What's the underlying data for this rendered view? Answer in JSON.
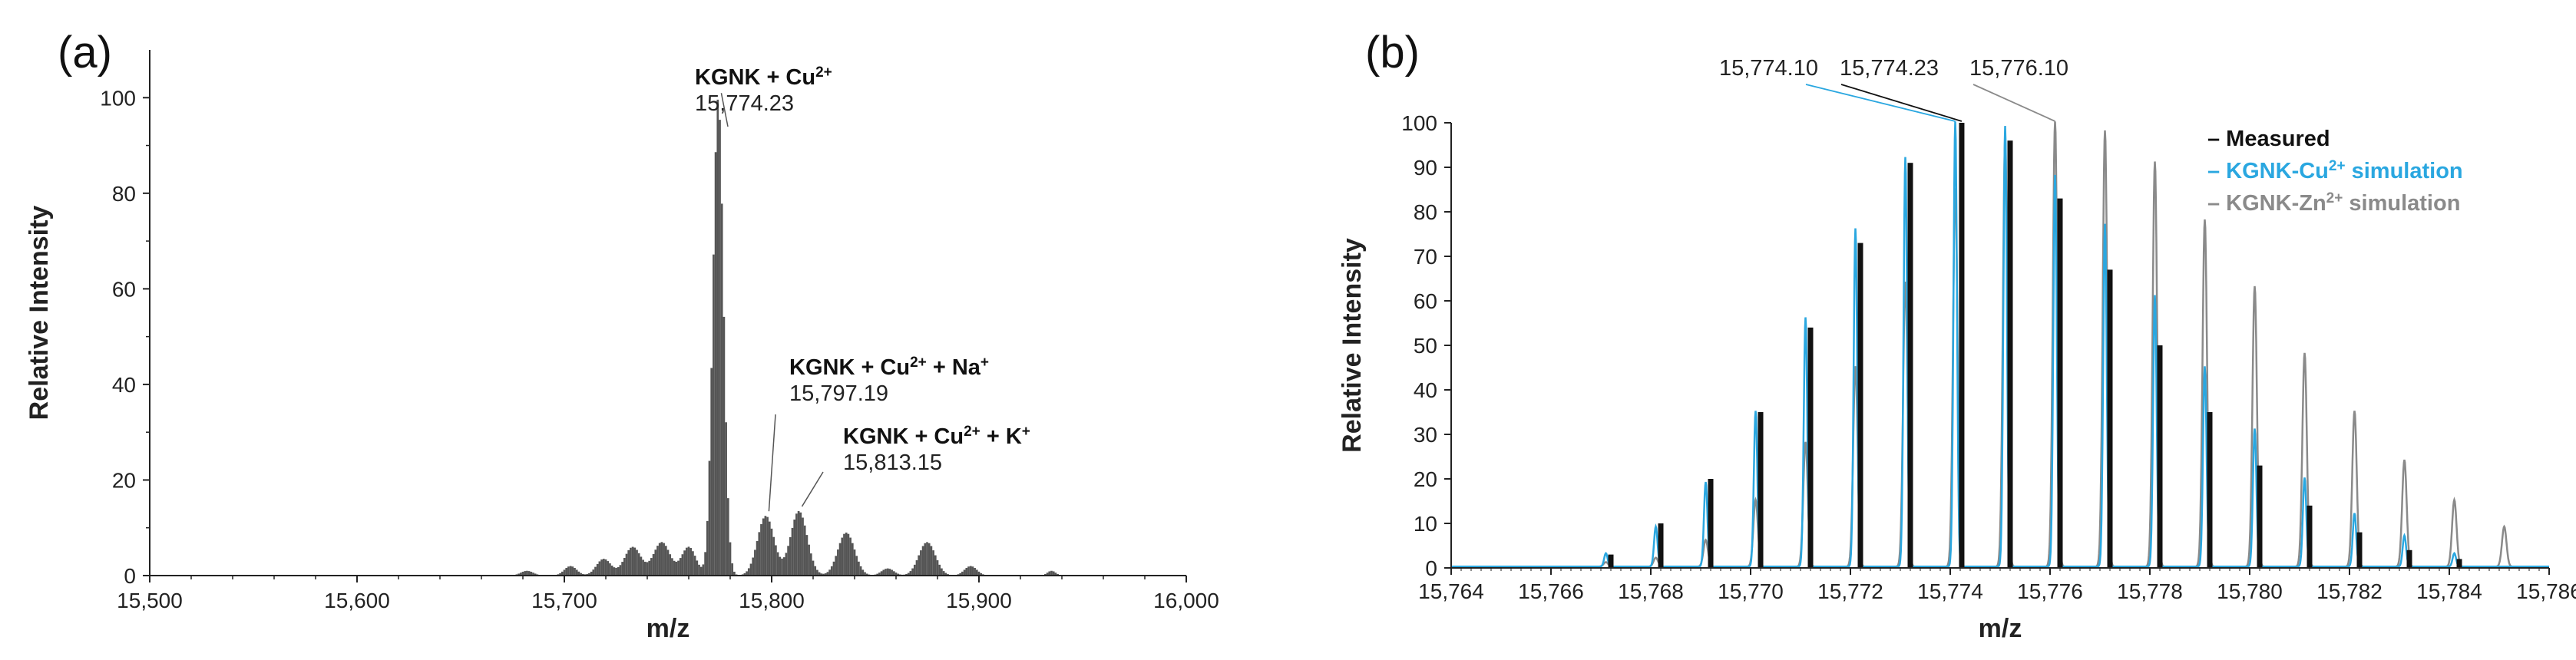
{
  "panels": {
    "a": {
      "label": "(a)"
    },
    "b": {
      "label": "(b)"
    }
  },
  "chart_data": [
    {
      "type": "line",
      "panel": "(a)",
      "xlabel": "m/z",
      "ylabel": "Relative Intensity",
      "xlim": [
        15500,
        16000
      ],
      "ylim": [
        0,
        110
      ],
      "x_ticks": [
        15500,
        15600,
        15700,
        15800,
        15900,
        16000
      ],
      "x_tick_labels": [
        "15,500",
        "15,600",
        "15,700",
        "15,800",
        "15,900",
        "16,000"
      ],
      "y_ticks": [
        0,
        20,
        40,
        60,
        80,
        100
      ],
      "y_tick_labels": [
        "0",
        "20",
        "40",
        "60",
        "80",
        "100"
      ],
      "series_color": "#555555",
      "envelopes": [
        {
          "center": 15682,
          "height": 1,
          "width": 3
        },
        {
          "center": 15703,
          "height": 2,
          "width": 3
        },
        {
          "center": 15719,
          "height": 3.5,
          "width": 3.5
        },
        {
          "center": 15733,
          "height": 6,
          "width": 4
        },
        {
          "center": 15747,
          "height": 7,
          "width": 4
        },
        {
          "center": 15760,
          "height": 6,
          "width": 3.5
        },
        {
          "center": 15774.23,
          "height": 100,
          "width": 2.5
        },
        {
          "center": 15797.19,
          "height": 12.5,
          "width": 4
        },
        {
          "center": 15813.15,
          "height": 13.5,
          "width": 4
        },
        {
          "center": 15836,
          "height": 9,
          "width": 4
        },
        {
          "center": 15856,
          "height": 1.5,
          "width": 3
        },
        {
          "center": 15875,
          "height": 7,
          "width": 4
        },
        {
          "center": 15896,
          "height": 2,
          "width": 3
        },
        {
          "center": 15935,
          "height": 1,
          "width": 2
        }
      ],
      "annotations": [
        {
          "name": "KGNK + Cu",
          "sup": "2+",
          "value": "15,774.23",
          "x": 15774.23,
          "y": 100
        },
        {
          "name": "KGNK + Cu",
          "sup": "2+",
          "tail": " + Na",
          "tail_sup": "+",
          "value": "15,797.19",
          "x": 15797.19,
          "y": 12.5
        },
        {
          "name": "KGNK + Cu",
          "sup": "2+",
          "tail": " + K",
          "tail_sup": "+",
          "value": "15,813.15",
          "x": 15813.15,
          "y": 13.5
        }
      ]
    },
    {
      "type": "line",
      "panel": "(b)",
      "xlabel": "m/z",
      "ylabel": "Relative Intensity",
      "xlim": [
        15764,
        15786
      ],
      "ylim": [
        0,
        100
      ],
      "x_ticks": [
        15764,
        15766,
        15768,
        15770,
        15772,
        15774,
        15776,
        15778,
        15780,
        15782,
        15784,
        15786
      ],
      "x_tick_labels": [
        "15,764",
        "15,766",
        "15,768",
        "15,770",
        "15,772",
        "15,774",
        "15,776",
        "15,778",
        "15,780",
        "15,782",
        "15,784",
        "15,786"
      ],
      "y_ticks": [
        0,
        10,
        20,
        30,
        40,
        50,
        60,
        70,
        80,
        90,
        100
      ],
      "y_tick_labels": [
        "0",
        "10",
        "20",
        "30",
        "40",
        "50",
        "60",
        "70",
        "80",
        "90",
        "100"
      ],
      "series": [
        {
          "name": "Measured",
          "color": "#111111",
          "kind": "sticks",
          "x": [
            15767.2,
            15768.2,
            15769.2,
            15770.2,
            15771.2,
            15772.2,
            15773.2,
            15774.23,
            15775.2,
            15776.2,
            15777.2,
            15778.2,
            15779.2,
            15780.2,
            15781.2,
            15782.2,
            15783.2,
            15784.2
          ],
          "values": [
            3,
            10,
            20,
            35,
            54,
            73,
            91,
            100,
            96,
            83,
            67,
            50,
            35,
            23,
            14,
            8,
            4,
            2
          ]
        },
        {
          "name": "KGNK-Cu",
          "name_sup": "2+",
          "name_tail": " simulation",
          "color": "#2aa7e0",
          "kind": "profile",
          "x": [
            15767.1,
            15768.1,
            15769.1,
            15770.1,
            15771.1,
            15772.1,
            15773.1,
            15774.1,
            15775.1,
            15776.1,
            15777.1,
            15778.1,
            15779.1,
            15780.1,
            15781.1,
            15782.1,
            15783.1,
            15784.1
          ],
          "values": [
            3,
            9,
            19,
            35,
            56,
            76,
            92,
            100,
            99,
            88,
            77,
            61,
            45,
            31,
            20,
            12,
            7,
            3
          ]
        },
        {
          "name": "KGNK-Zn",
          "name_sup": "2+",
          "name_tail": " simulation",
          "color": "#8a8a8a",
          "kind": "profile",
          "x": [
            15767.1,
            15768.1,
            15769.1,
            15770.1,
            15771.1,
            15772.1,
            15773.1,
            15774.1,
            15775.1,
            15776.1,
            15777.1,
            15778.1,
            15779.1,
            15780.1,
            15781.1,
            15782.1,
            15783.1,
            15784.1,
            15785.1
          ],
          "values": [
            1,
            2,
            6,
            15,
            28,
            45,
            64,
            85,
            96,
            100,
            98,
            91,
            78,
            63,
            48,
            35,
            24,
            15,
            9
          ]
        }
      ],
      "peak_labels": [
        {
          "text": "15,774.10",
          "color": "#2aa7e0",
          "x": 15774.1,
          "y": 100
        },
        {
          "text": "15,774.23",
          "color": "#111111",
          "x": 15774.23,
          "y": 100
        },
        {
          "text": "15,776.10",
          "color": "#8a8a8a",
          "x": 15776.1,
          "y": 100
        }
      ],
      "legend": "top-right"
    }
  ]
}
